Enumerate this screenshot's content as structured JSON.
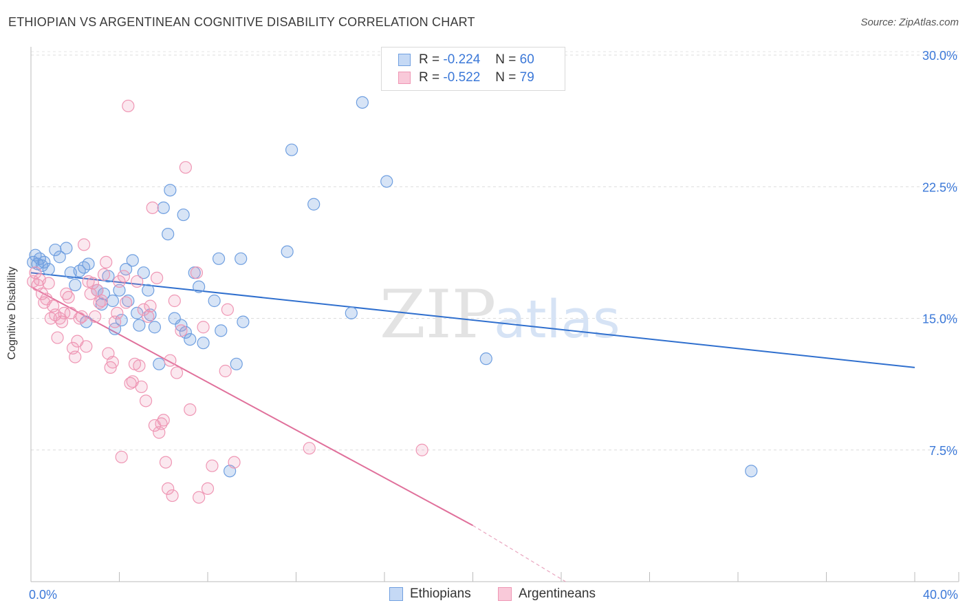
{
  "title": "ETHIOPIAN VS ARGENTINEAN COGNITIVE DISABILITY CORRELATION CHART",
  "source": "Source: ZipAtlas.com",
  "watermark": {
    "zip": "ZIP",
    "atlas": "atlas"
  },
  "legend": [
    {
      "r_label": "R =",
      "r_value": "-0.224",
      "n_label": "N =",
      "n_value": "60"
    },
    {
      "r_label": "R =",
      "r_value": "-0.522",
      "n_label": "N =",
      "n_value": "79"
    }
  ],
  "chart_data": {
    "type": "scatter",
    "title": "ETHIOPIAN VS ARGENTINEAN COGNITIVE DISABILITY CORRELATION CHART",
    "xlabel": "",
    "ylabel": "Cognitive Disability",
    "xlim": [
      0,
      42
    ],
    "ylim": [
      0,
      30.5
    ],
    "x_tick_labels": [
      "0.0%",
      "40.0%"
    ],
    "y_tick_labels": [
      "7.5%",
      "15.0%",
      "22.5%",
      "30.0%"
    ],
    "y_ticks": [
      7.5,
      15.0,
      22.5,
      30.0
    ],
    "colors": {
      "ethiopians": "#6f9fe0",
      "argentineans": "#ef96b4",
      "ethiopians_line": "#2f6fce",
      "argentineans_line": "#e0709b",
      "value_text": "#3b78d8"
    },
    "series": [
      {
        "name": "Ethiopians",
        "trend": {
          "x0": 0,
          "y0": 17.6,
          "x1": 40,
          "y1": 12.2
        },
        "points": [
          [
            0.1,
            18.2
          ],
          [
            0.3,
            18.1
          ],
          [
            0.4,
            18.4
          ],
          [
            0.6,
            18.2
          ],
          [
            0.8,
            17.8
          ],
          [
            1.1,
            18.9
          ],
          [
            1.3,
            18.5
          ],
          [
            1.6,
            19.0
          ],
          [
            1.8,
            17.6
          ],
          [
            2.0,
            16.9
          ],
          [
            2.2,
            17.7
          ],
          [
            2.4,
            17.9
          ],
          [
            2.5,
            14.8
          ],
          [
            2.6,
            18.1
          ],
          [
            3.0,
            16.6
          ],
          [
            3.2,
            15.8
          ],
          [
            3.3,
            16.4
          ],
          [
            3.5,
            17.4
          ],
          [
            3.7,
            16.0
          ],
          [
            3.8,
            14.4
          ],
          [
            4.0,
            16.6
          ],
          [
            4.1,
            14.9
          ],
          [
            4.3,
            17.8
          ],
          [
            4.4,
            16.0
          ],
          [
            4.6,
            18.3
          ],
          [
            4.8,
            15.3
          ],
          [
            4.9,
            14.6
          ],
          [
            5.1,
            17.6
          ],
          [
            5.3,
            16.6
          ],
          [
            5.4,
            15.2
          ],
          [
            5.6,
            14.5
          ],
          [
            5.8,
            12.4
          ],
          [
            6.0,
            21.3
          ],
          [
            6.2,
            19.8
          ],
          [
            6.3,
            22.3
          ],
          [
            6.5,
            15.0
          ],
          [
            6.8,
            14.6
          ],
          [
            6.9,
            20.9
          ],
          [
            7.0,
            14.2
          ],
          [
            7.2,
            13.8
          ],
          [
            7.4,
            17.6
          ],
          [
            7.6,
            16.8
          ],
          [
            7.8,
            13.6
          ],
          [
            8.3,
            16.0
          ],
          [
            8.5,
            18.4
          ],
          [
            8.6,
            14.3
          ],
          [
            9.0,
            6.3
          ],
          [
            9.3,
            12.4
          ],
          [
            9.5,
            18.4
          ],
          [
            9.6,
            14.8
          ],
          [
            11.6,
            18.8
          ],
          [
            11.8,
            24.6
          ],
          [
            12.8,
            21.5
          ],
          [
            14.5,
            15.3
          ],
          [
            15.0,
            27.3
          ],
          [
            16.1,
            22.8
          ],
          [
            20.6,
            12.7
          ],
          [
            32.6,
            6.3
          ],
          [
            0.2,
            18.6
          ],
          [
            0.5,
            18.0
          ]
        ]
      },
      {
        "name": "Argentineans",
        "trend": {
          "x0": 0,
          "y0": 16.8,
          "x1": 20.0,
          "y1": 3.2
        },
        "trend_dashed": {
          "x0": 20.0,
          "y0": 3.2,
          "x1": 24.2,
          "y1": 0.0
        },
        "points": [
          [
            0.1,
            17.1
          ],
          [
            0.2,
            17.6
          ],
          [
            0.3,
            16.9
          ],
          [
            0.4,
            17.2
          ],
          [
            0.5,
            16.4
          ],
          [
            0.6,
            15.9
          ],
          [
            0.7,
            16.1
          ],
          [
            0.8,
            17.0
          ],
          [
            0.9,
            15.0
          ],
          [
            1.0,
            15.7
          ],
          [
            1.1,
            15.2
          ],
          [
            1.2,
            13.9
          ],
          [
            1.3,
            15.0
          ],
          [
            1.4,
            14.8
          ],
          [
            1.5,
            15.3
          ],
          [
            1.6,
            16.4
          ],
          [
            1.7,
            16.2
          ],
          [
            1.8,
            15.3
          ],
          [
            1.9,
            13.3
          ],
          [
            2.0,
            12.8
          ],
          [
            2.1,
            13.7
          ],
          [
            2.2,
            15.0
          ],
          [
            2.3,
            15.1
          ],
          [
            2.4,
            19.2
          ],
          [
            2.5,
            13.4
          ],
          [
            2.6,
            17.1
          ],
          [
            2.7,
            16.4
          ],
          [
            2.8,
            17.0
          ],
          [
            2.9,
            15.1
          ],
          [
            3.0,
            16.6
          ],
          [
            3.1,
            15.9
          ],
          [
            3.2,
            16.0
          ],
          [
            3.3,
            17.5
          ],
          [
            3.4,
            18.2
          ],
          [
            3.5,
            13.0
          ],
          [
            3.6,
            12.2
          ],
          [
            3.7,
            12.5
          ],
          [
            3.8,
            14.8
          ],
          [
            3.9,
            15.3
          ],
          [
            4.0,
            17.1
          ],
          [
            4.1,
            7.1
          ],
          [
            4.2,
            17.4
          ],
          [
            4.3,
            15.9
          ],
          [
            4.4,
            27.1
          ],
          [
            4.5,
            11.3
          ],
          [
            4.6,
            11.4
          ],
          [
            4.7,
            12.4
          ],
          [
            4.8,
            17.1
          ],
          [
            4.9,
            12.3
          ],
          [
            5.0,
            11.1
          ],
          [
            5.1,
            15.5
          ],
          [
            5.2,
            10.3
          ],
          [
            5.3,
            15.1
          ],
          [
            5.4,
            15.7
          ],
          [
            5.5,
            21.3
          ],
          [
            5.6,
            8.9
          ],
          [
            5.7,
            17.3
          ],
          [
            5.8,
            8.5
          ],
          [
            5.9,
            9.0
          ],
          [
            6.0,
            9.2
          ],
          [
            6.1,
            6.8
          ],
          [
            6.2,
            5.3
          ],
          [
            6.3,
            12.6
          ],
          [
            6.4,
            4.9
          ],
          [
            6.5,
            16.0
          ],
          [
            6.6,
            11.9
          ],
          [
            6.8,
            14.3
          ],
          [
            7.0,
            23.6
          ],
          [
            7.2,
            9.8
          ],
          [
            7.5,
            17.6
          ],
          [
            7.6,
            4.8
          ],
          [
            7.8,
            14.5
          ],
          [
            8.0,
            5.3
          ],
          [
            8.2,
            6.6
          ],
          [
            8.8,
            12.0
          ],
          [
            8.9,
            15.5
          ],
          [
            9.2,
            6.8
          ],
          [
            12.6,
            7.6
          ],
          [
            17.7,
            7.5
          ]
        ]
      }
    ]
  },
  "bottom_legend": [
    {
      "label": "Ethiopians"
    },
    {
      "label": "Argentineans"
    }
  ]
}
